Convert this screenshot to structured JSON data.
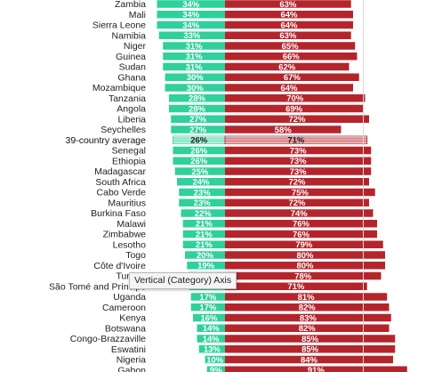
{
  "colors": {
    "positive": "#2fd09a",
    "negative": "#b4252b",
    "grid": "#d8d8d8",
    "background": "#ffffff"
  },
  "tooltip": {
    "text": "Vertical (Category) Axis"
  },
  "chart_data": {
    "type": "bar",
    "orientation": "horizontal",
    "stacked": "diverging",
    "categories": [
      "Zambia",
      "Mali",
      "Sierra Leone",
      "Namibia",
      "Niger",
      "Guinea",
      "Sudan",
      "Ghana",
      "Mozambique",
      "Tanzania",
      "Angola",
      "Liberia",
      "Seychelles",
      "39-country average",
      "Senegal",
      "Ethiopia",
      "Madagascar",
      "South Africa",
      "Cabo Verde",
      "Mauritius",
      "Burkina Faso",
      "Malawi",
      "Zimbabwe",
      "Lesotho",
      "Togo",
      "Côte d'Ivoire",
      "Tunisia",
      "São Tomé and Príncipe",
      "Uganda",
      "Cameroon",
      "Kenya",
      "Botswana",
      "Congo-Brazzaville",
      "Eswatini",
      "Nigeria",
      "Gabon"
    ],
    "series": [
      {
        "color": "#2fd09a",
        "values": [
          34,
          34,
          34,
          33,
          31,
          31,
          31,
          30,
          30,
          28,
          28,
          27,
          27,
          26,
          26,
          26,
          25,
          24,
          23,
          23,
          22,
          21,
          21,
          21,
          20,
          19,
          18,
          18,
          17,
          17,
          16,
          14,
          14,
          13,
          10,
          9
        ]
      },
      {
        "color": "#b4252b",
        "values": [
          63,
          64,
          64,
          63,
          65,
          66,
          62,
          67,
          64,
          70,
          69,
          72,
          58,
          71,
          73,
          73,
          73,
          72,
          75,
          72,
          74,
          76,
          76,
          79,
          80,
          80,
          78,
          71,
          81,
          82,
          83,
          82,
          85,
          85,
          84,
          91
        ]
      }
    ],
    "value_labels_positive": [
      "34%",
      "34%",
      "34%",
      "33%",
      "31%",
      "31%",
      "31%",
      "30%",
      "30%",
      "28%",
      "28%",
      "27%",
      "27%",
      "26%",
      "26%",
      "26%",
      "25%",
      "24%",
      "23%",
      "23%",
      "22%",
      "21%",
      "21%",
      "21%",
      "20%",
      "19%",
      "18%",
      "18%",
      "17%",
      "17%",
      "16%",
      "14%",
      "14%",
      "13%",
      "10%",
      "9%"
    ],
    "value_labels_negative": [
      "63%",
      "64%",
      "64%",
      "63%",
      "65%",
      "66%",
      "62%",
      "67%",
      "64%",
      "70%",
      "69%",
      "72%",
      "58%",
      "71%",
      "73%",
      "73%",
      "73%",
      "72%",
      "75%",
      "72%",
      "74%",
      "76%",
      "76%",
      "79%",
      "80%",
      "80%",
      "78%",
      "71%",
      "81%",
      "82%",
      "83%",
      "82%",
      "85%",
      "85%",
      "84%",
      "91%"
    ],
    "highlight_category": "39-country average"
  }
}
